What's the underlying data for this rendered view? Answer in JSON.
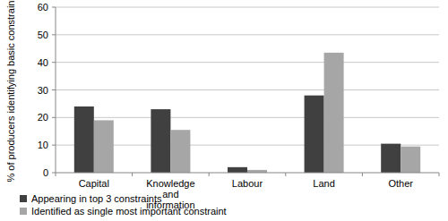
{
  "chart_data": {
    "type": "bar",
    "categories": [
      "Capital",
      "Knowledge and information",
      "Labour",
      "Land",
      "Other"
    ],
    "series": [
      {
        "name": "Appearing in top 3 constraints",
        "color": "#404040",
        "values": [
          24,
          23,
          2,
          28,
          10.5
        ]
      },
      {
        "name": "Identified as single most important constraint",
        "color": "#a6a6a6",
        "values": [
          19,
          15.5,
          1,
          43.5,
          9.5
        ]
      }
    ],
    "y_label": "% of producers identifying basic constraint",
    "ylim": [
      0,
      60
    ],
    "yticks": [
      0,
      10,
      20,
      30,
      40,
      50,
      60
    ],
    "grid": true,
    "legend": "bottom"
  }
}
